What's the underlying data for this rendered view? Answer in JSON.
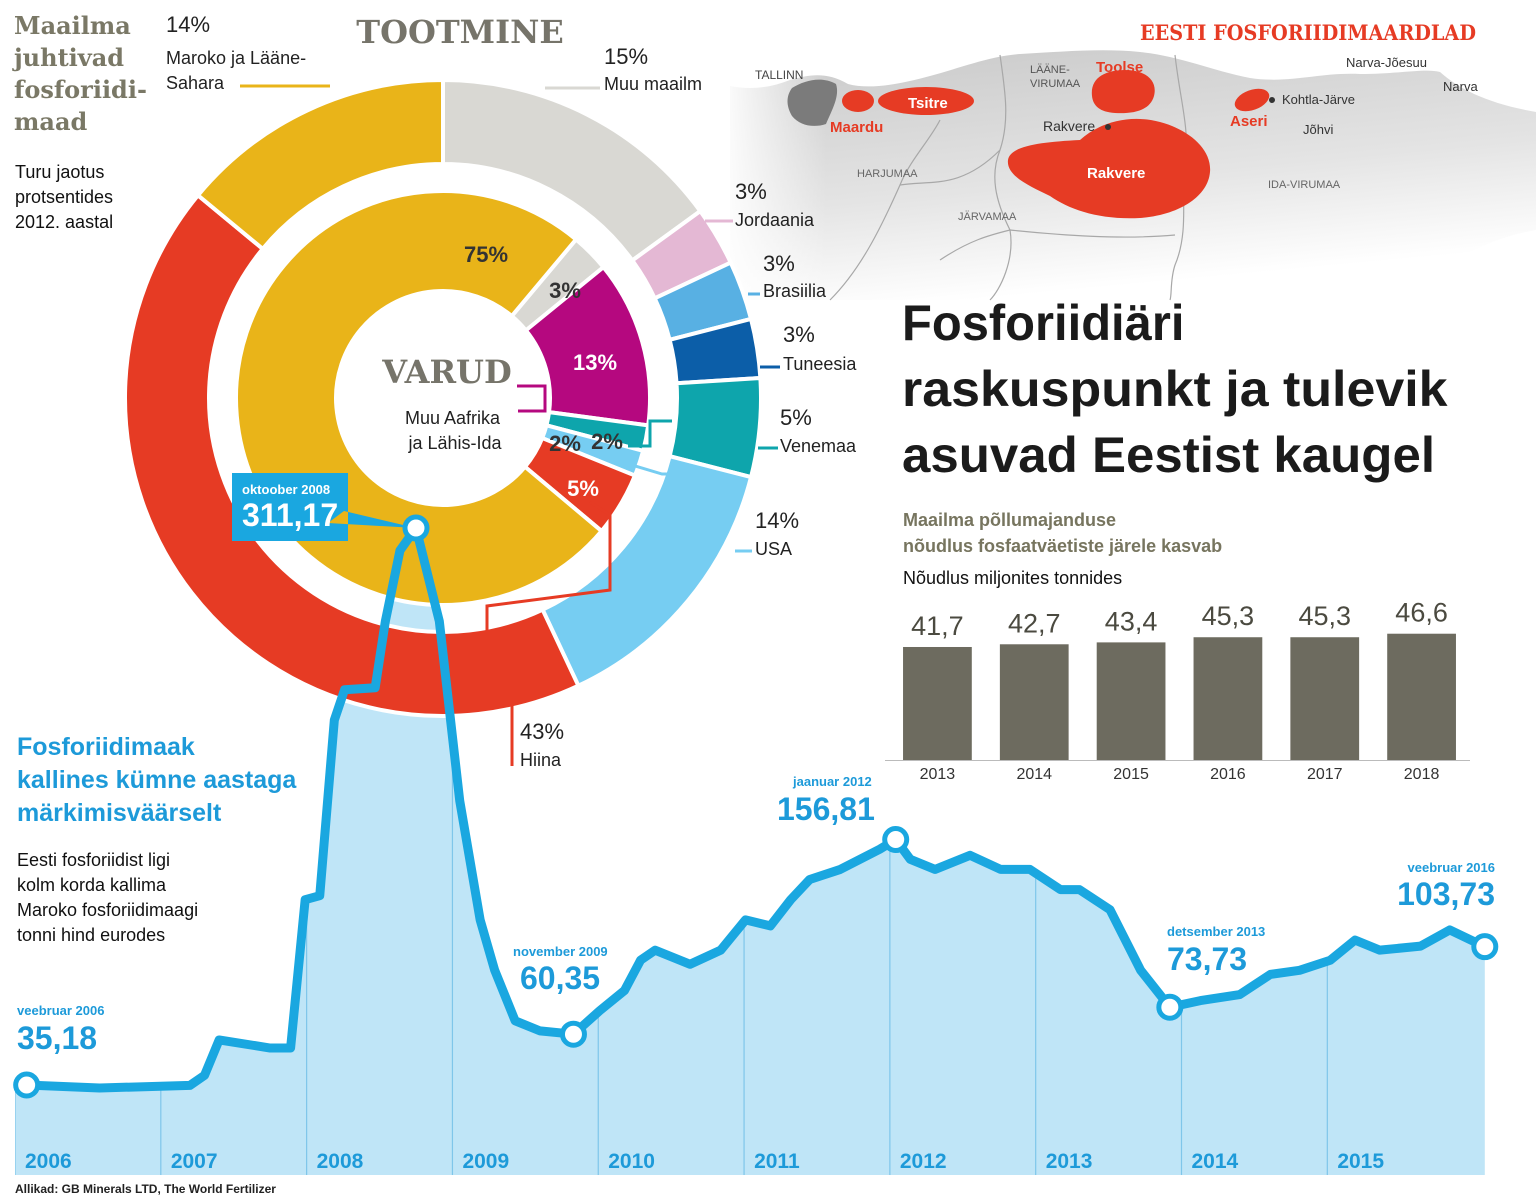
{
  "headline": "Fosforiidiäri\nraskuspunkt ja tulevik\nasuvad Eestist kaugel",
  "source": "Allikad: GB Minerals LTD, The World Fertilizer",
  "map": {
    "title": "EESTI FOSFORIIDIMAARDLAD",
    "labels": [
      "TALLINN",
      "LÄÄNE-\nVIRUMAA",
      "Toolse",
      "Tsitre",
      "Maardu",
      "Rakvere",
      "Rakvere",
      "Aseri",
      "Kohtla-Järve",
      "Jõhvi",
      "Narva-Jõesuu",
      "Narva",
      "HARJUMAA",
      "JÄRVAMAA",
      "IDA-VIRUMAA"
    ]
  },
  "chart_data": [
    {
      "type": "donut",
      "title": "Maailma\njuhtivad\nfosforiidi-\nmaad",
      "subtitle": "Turu jaotus\nprotsentides\n2012. aastal",
      "rings": [
        {
          "name": "TOOTMINE",
          "categories": [
            "Muu maailm",
            "Jordaania",
            "Brasiilia",
            "Tuneesia",
            "Venemaa",
            "USA",
            "Hiina",
            "Maroko ja Lääne-\nSahara"
          ],
          "values": [
            15,
            3,
            3,
            3,
            5,
            14,
            43,
            14
          ],
          "value_labels": [
            "15%",
            "3%",
            "3%",
            "3%",
            "5%",
            "14%",
            "43%",
            "14%"
          ],
          "colors": [
            "#d9d8d3",
            "#e4b8d4",
            "#58b0e3",
            "#0c5ea8",
            "#0ea5ac",
            "#76cdf2",
            "#e63b24",
            "#e9b419"
          ]
        },
        {
          "name": "VARUD",
          "categories": [
            null,
            "Muu Aafrika\nja Lähis-Ida",
            null,
            null,
            null,
            null
          ],
          "values": [
            3,
            13,
            2,
            2,
            5,
            75
          ],
          "value_labels": [
            "3%",
            "13%",
            "2%",
            "2%",
            "5%",
            "75%"
          ],
          "colors": [
            "#d9d8d3",
            "#b5087f",
            "#0ea5ac",
            "#76cdf2",
            "#e63b24",
            "#e9b419"
          ]
        }
      ]
    },
    {
      "type": "line",
      "title": "Fosforiidimaak\nkallines kümne aastaga\nmärkimisväärselt",
      "subtitle": "Eesti fosforiidist ligi\nkolm korda kallima\nMaroko fosforiidimaagi\ntonni hind eurodes",
      "color": "#1aa7e0",
      "fill": "#bfe5f7",
      "xlim": [
        2006,
        2016.15
      ],
      "xticks": [
        2006,
        2007,
        2008,
        2009,
        2010,
        2011,
        2012,
        2013,
        2014,
        2015
      ],
      "ylim": [
        0,
        330
      ],
      "x": [
        2006.08,
        2006.58,
        2007.2,
        2007.3,
        2007.4,
        2007.75,
        2007.89,
        2007.99,
        2008.09,
        2008.19,
        2008.26,
        2008.47,
        2008.54,
        2008.64,
        2008.75,
        2008.91,
        2009.05,
        2009.19,
        2009.29,
        2009.43,
        2009.6,
        2009.83,
        2010.01,
        2010.18,
        2010.29,
        2010.39,
        2010.63,
        2010.84,
        2011.01,
        2011.18,
        2011.32,
        2011.45,
        2011.66,
        2011.93,
        2012.04,
        2012.14,
        2012.31,
        2012.55,
        2012.76,
        2012.96,
        2013.17,
        2013.3,
        2013.51,
        2013.72,
        2013.92,
        2014.13,
        2014.4,
        2014.61,
        2014.81,
        2015.02,
        2015.19,
        2015.36,
        2015.64,
        2015.84,
        2016.08
      ],
      "values": [
        35.18,
        33.7,
        35,
        40,
        57.5,
        53.5,
        53.5,
        127,
        129,
        216,
        231,
        232,
        265,
        300,
        311.17,
        265,
        176,
        117,
        92,
        67,
        62,
        60.35,
        72,
        82,
        97,
        102,
        95,
        102,
        117,
        114,
        127,
        137,
        142,
        152,
        156.81,
        147,
        142,
        149,
        142,
        142,
        132,
        132,
        122,
        92,
        73.73,
        77,
        80,
        90,
        92,
        97,
        107,
        102,
        104,
        112,
        103.73
      ],
      "point_labels": [
        "veebruar 2006",
        null,
        null,
        null,
        null,
        null,
        null,
        null,
        null,
        null,
        null,
        null,
        null,
        null,
        "oktoober 2008",
        null,
        null,
        null,
        null,
        null,
        null,
        "november 2009",
        null,
        null,
        null,
        null,
        null,
        null,
        null,
        null,
        null,
        null,
        null,
        null,
        "jaanuar 2012",
        null,
        null,
        null,
        null,
        null,
        null,
        null,
        null,
        null,
        "detsember 2013",
        null,
        null,
        null,
        null,
        null,
        null,
        null,
        null,
        null,
        "veebruar 2016"
      ],
      "value_labels": [
        "35,18",
        null,
        null,
        null,
        null,
        null,
        null,
        null,
        null,
        null,
        null,
        null,
        null,
        null,
        "311,17",
        null,
        null,
        null,
        null,
        null,
        null,
        "60,35",
        null,
        null,
        null,
        null,
        null,
        null,
        null,
        null,
        null,
        null,
        null,
        null,
        "156,81",
        null,
        null,
        null,
        null,
        null,
        null,
        null,
        null,
        null,
        "73,73",
        null,
        null,
        null,
        null,
        null,
        null,
        null,
        null,
        null,
        "103,73"
      ]
    },
    {
      "type": "bar",
      "title": "Maailma põllumajanduse\nnõudlus fosfaatväetiste järele kasvab",
      "subtitle": "Nõudlus miljonites tonnides",
      "categories": [
        "2013",
        "2014",
        "2015",
        "2016",
        "2017",
        "2018"
      ],
      "values": [
        41.7,
        42.7,
        43.4,
        45.3,
        45.3,
        46.6
      ],
      "value_labels": [
        "41,7",
        "42,7",
        "43,4",
        "45,3",
        "45,3",
        "46,6"
      ],
      "color": "#6d6b5f",
      "ylim": [
        0,
        50
      ]
    }
  ]
}
